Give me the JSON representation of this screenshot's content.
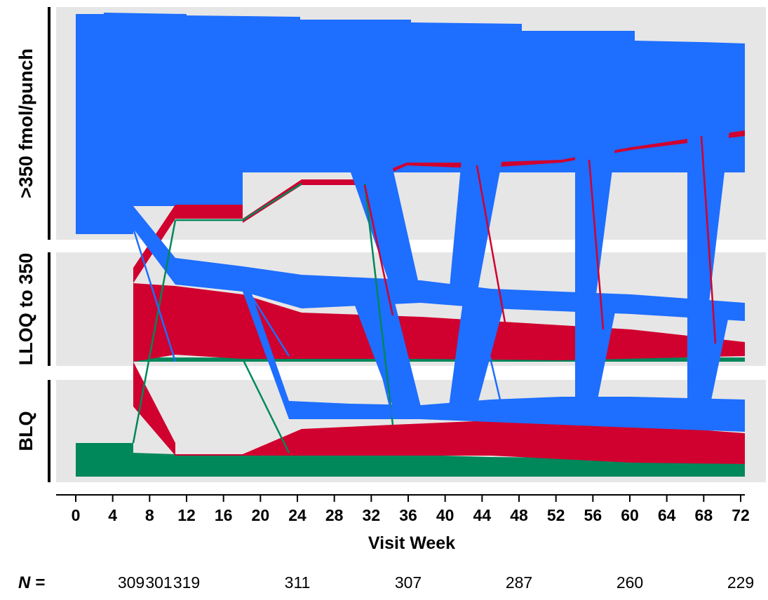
{
  "chart_data": {
    "type": "alluvial",
    "title": "",
    "xlabel": "Visit Week",
    "ylabel": "",
    "x_ticks": [
      0,
      4,
      8,
      12,
      16,
      20,
      24,
      28,
      32,
      36,
      40,
      44,
      48,
      52,
      56,
      60,
      64,
      68,
      72
    ],
    "xlim": [
      0,
      72
    ],
    "categories": [
      ">350 fmol/punch",
      "LLOQ to 350",
      "BLQ"
    ],
    "visit_weeks": [
      3,
      7,
      11,
      19,
      31,
      43,
      55,
      67
    ],
    "n_label": "N =",
    "n_values": [
      309,
      301,
      319,
      311,
      307,
      287,
      260,
      229
    ],
    "n_label_weeks": [
      6,
      9,
      12,
      24,
      36,
      48,
      60,
      72
    ],
    "series": [
      {
        "key": "blq_origin",
        "color": "#00875a"
      },
      {
        "key": "lloq_origin",
        "color": "#d0002f"
      },
      {
        "key": "high_origin",
        "color": "#1e6eff"
      }
    ],
    "band_background": "#e6e6e6",
    "grid": false,
    "legend": "none"
  }
}
